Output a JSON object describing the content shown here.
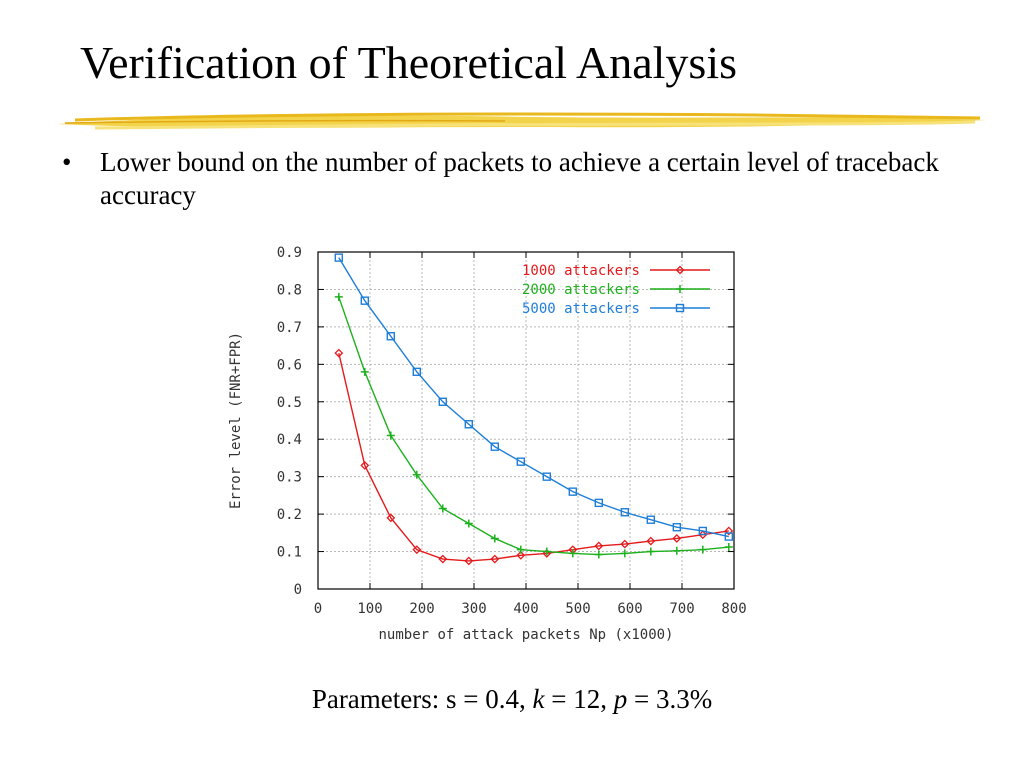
{
  "title": "Verification of Theoretical Analysis",
  "bullet": {
    "glyph": "•",
    "text": "Lower bound on the number of packets to achieve a certain level of traceback accuracy"
  },
  "parameters": {
    "prefix": "Parameters: ",
    "s_part": "s = 0.4, ",
    "k_sym": "k",
    "k_part": " = 12, ",
    "p_sym": "p",
    "p_part": " = 3.3%"
  },
  "chart_data": {
    "type": "line",
    "xlabel": "number of attack packets Np (x1000)",
    "ylabel": "Error level (FNR+FPR)",
    "xlim": [
      0,
      800
    ],
    "ylim": [
      0,
      0.9
    ],
    "xticks": [
      0,
      100,
      200,
      300,
      400,
      500,
      600,
      700,
      800
    ],
    "yticks": [
      0,
      0.1,
      0.2,
      0.3,
      0.4,
      0.5,
      0.6,
      0.7,
      0.8,
      0.9
    ],
    "grid": true,
    "legend_position": "top-right",
    "x": [
      40,
      90,
      140,
      190,
      240,
      290,
      340,
      390,
      440,
      490,
      540,
      590,
      640,
      690,
      740,
      790
    ],
    "series": [
      {
        "name": "1000 attackers",
        "color": "#e41a1c",
        "marker": "diamond",
        "values": [
          0.63,
          0.33,
          0.19,
          0.105,
          0.08,
          0.075,
          0.08,
          0.09,
          0.095,
          0.105,
          0.115,
          0.12,
          0.128,
          0.135,
          0.145,
          0.155
        ]
      },
      {
        "name": "2000 attackers",
        "color": "#1db11d",
        "marker": "plus",
        "values": [
          0.78,
          0.58,
          0.41,
          0.305,
          0.215,
          0.175,
          0.135,
          0.105,
          0.1,
          0.095,
          0.092,
          0.095,
          0.1,
          0.102,
          0.105,
          0.112
        ]
      },
      {
        "name": "5000 attackers",
        "color": "#1e7ed8",
        "marker": "square",
        "values": [
          0.885,
          0.77,
          0.675,
          0.58,
          0.5,
          0.44,
          0.38,
          0.34,
          0.3,
          0.26,
          0.23,
          0.205,
          0.185,
          0.165,
          0.155,
          0.14
        ]
      }
    ]
  }
}
